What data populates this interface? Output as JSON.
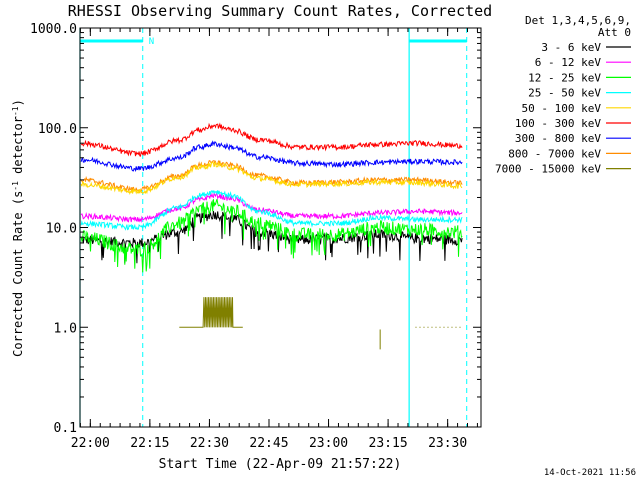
{
  "chart_data": {
    "type": "line",
    "title": "RHESSI Observing Summary Count Rates, Corrected",
    "xlabel": "Start Time (22-Apr-09 21:57:22)",
    "ylabel_main": "Corrected Count Rate (s",
    "ylabel_exp1": "-1",
    "ylabel_mid": " detector",
    "ylabel_exp2": "-1",
    "ylabel_end": ")",
    "yscale": "log",
    "ylim": [
      0.1,
      1000
    ],
    "x_units": "minutes after 21:57:22",
    "xlim": [
      0,
      101
    ],
    "xticks": [
      {
        "label": "22:00",
        "value": 2.6
      },
      {
        "label": "22:15",
        "value": 17.6
      },
      {
        "label": "22:30",
        "value": 32.6
      },
      {
        "label": "22:45",
        "value": 47.6
      },
      {
        "label": "23:00",
        "value": 62.6
      },
      {
        "label": "23:15",
        "value": 77.6
      },
      {
        "label": "23:30",
        "value": 92.6
      }
    ],
    "yticks": [
      {
        "label": "0.1",
        "value": 0.1
      },
      {
        "label": "1.0",
        "value": 1
      },
      {
        "label": "10.0",
        "value": 10
      },
      {
        "label": "100.0",
        "value": 100
      },
      {
        "label": "1000.0",
        "value": 1000
      }
    ],
    "legend_header": [
      "Det 1,3,4,5,6,9,",
      "Att 0"
    ],
    "series": [
      {
        "name": "3 - 6 keV",
        "color": "#000000",
        "x": [
          0,
          15,
          25,
          30,
          34,
          38,
          45,
          55,
          65,
          75,
          85,
          96
        ],
        "values": [
          7.5,
          7,
          9,
          12.5,
          13.5,
          12.5,
          9,
          7.5,
          7.8,
          8.5,
          7.8,
          7.5
        ]
      },
      {
        "name": "6 - 12 keV",
        "color": "#ff00ff",
        "x": [
          0,
          15,
          25,
          30,
          34,
          38,
          45,
          55,
          65,
          75,
          85,
          96
        ],
        "values": [
          13,
          12,
          15.5,
          19,
          21,
          19.5,
          15,
          13,
          13,
          14,
          14.5,
          14
        ]
      },
      {
        "name": "12 - 25 keV",
        "color": "#00ff00",
        "x": [
          0,
          15,
          25,
          30,
          34,
          38,
          45,
          55,
          65,
          75,
          85,
          96
        ],
        "values": [
          8,
          6,
          11,
          15,
          16.5,
          15,
          11,
          8.5,
          8.5,
          10,
          9.5,
          9
        ]
      },
      {
        "name": "25 - 50 keV",
        "color": "#00ffff",
        "x": [
          0,
          15,
          25,
          30,
          34,
          38,
          45,
          55,
          65,
          75,
          85,
          96
        ],
        "values": [
          11,
          10,
          16,
          21,
          23,
          21,
          14.5,
          11,
          11,
          12.5,
          12,
          12
        ]
      },
      {
        "name": "50 - 100 keV",
        "color": "#ffd700",
        "x": [
          0,
          15,
          25,
          30,
          34,
          38,
          45,
          55,
          65,
          75,
          85,
          96
        ],
        "values": [
          27,
          23,
          32,
          40,
          43,
          40,
          31,
          27,
          27.5,
          28.5,
          28,
          26
        ]
      },
      {
        "name": "100 - 300 keV",
        "color": "#ff0000",
        "x": [
          0,
          15,
          25,
          30,
          34,
          38,
          45,
          55,
          65,
          75,
          85,
          96
        ],
        "values": [
          70,
          55,
          75,
          95,
          105,
          96,
          76,
          64,
          64,
          68,
          70,
          66
        ]
      },
      {
        "name": "300 - 800 keV",
        "color": "#0000ff",
        "x": [
          0,
          15,
          25,
          30,
          34,
          38,
          45,
          55,
          65,
          75,
          85,
          96
        ],
        "values": [
          48,
          39,
          50,
          64,
          69,
          64,
          51,
          44,
          43,
          45,
          46,
          45
        ]
      },
      {
        "name": "800 - 7000 keV",
        "color": "#ff8c00",
        "x": [
          0,
          15,
          25,
          30,
          34,
          38,
          45,
          55,
          65,
          75,
          85,
          96
        ],
        "values": [
          30,
          24,
          33,
          42,
          45,
          42,
          33,
          28,
          28.5,
          30,
          30,
          28
        ]
      },
      {
        "name": "7000 - 15000 keV",
        "color": "#808000",
        "x": [
          26,
          28,
          30,
          32,
          34,
          36,
          38,
          40
        ],
        "values": [
          1,
          2,
          1,
          2,
          1,
          2,
          1,
          2
        ]
      }
    ],
    "annotations": {
      "attenuator_bar_label": "N",
      "night_intervals": [
        [
          0,
          15.8
        ],
        [
          82.9,
          97.4
        ]
      ]
    }
  },
  "footer": {
    "timestamp": "14-Oct-2021 11:56"
  }
}
